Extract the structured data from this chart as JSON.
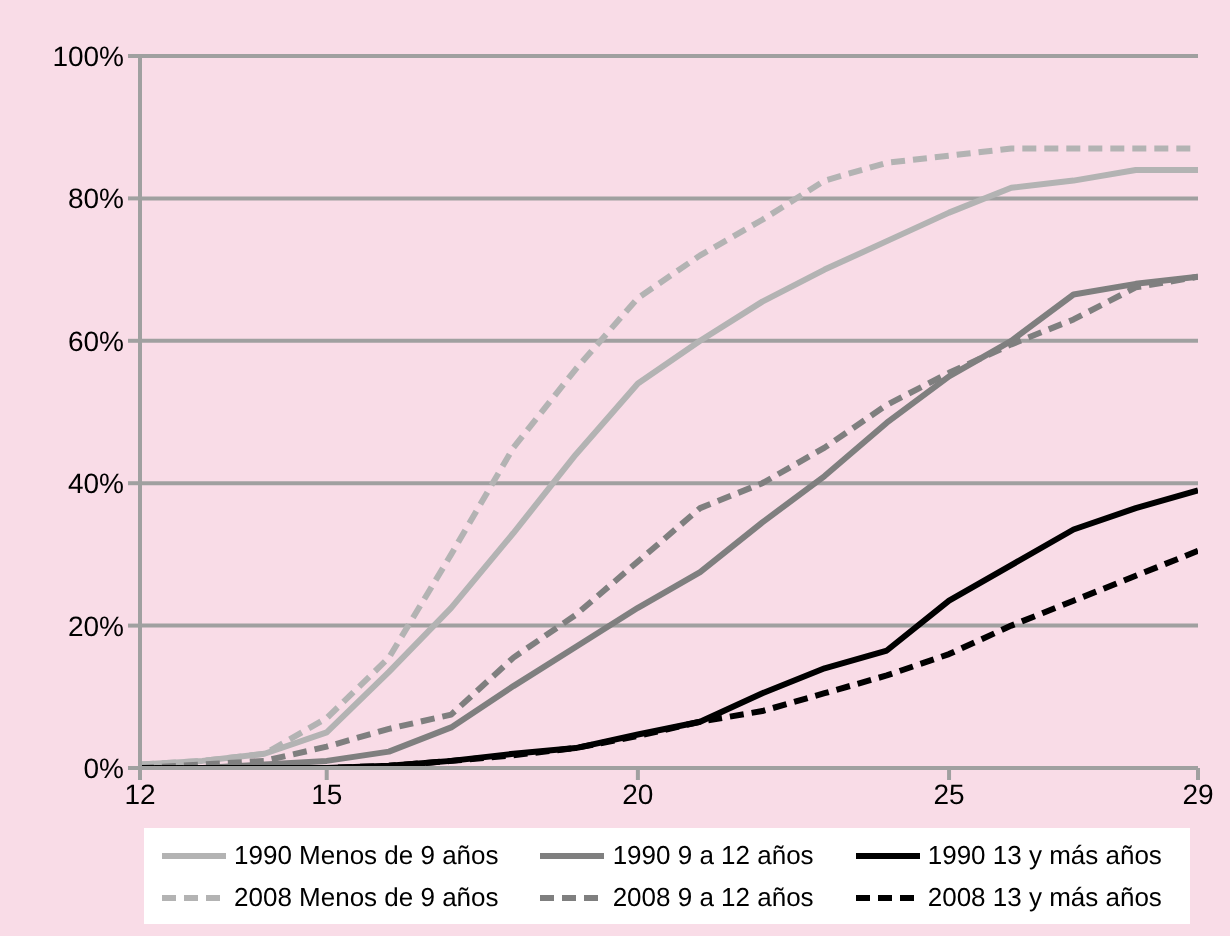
{
  "chart_data": {
    "type": "line",
    "x": [
      12,
      13,
      14,
      15,
      16,
      17,
      18,
      19,
      20,
      21,
      22,
      23,
      24,
      25,
      26,
      27,
      28,
      29
    ],
    "xlim": [
      12,
      29
    ],
    "xticks": [
      12,
      15,
      20,
      25,
      29
    ],
    "ylim": [
      0,
      100
    ],
    "yticks": [
      {
        "value": 0,
        "label": "0%"
      },
      {
        "value": 20,
        "label": "20%"
      },
      {
        "value": 40,
        "label": "40%"
      },
      {
        "value": 60,
        "label": "60%"
      },
      {
        "value": 80,
        "label": "80%"
      },
      {
        "value": 100,
        "label": "100%"
      }
    ],
    "grid": "y",
    "legend": "bottom",
    "marker": "none",
    "series": [
      {
        "name": "1990 Menos de 9 años",
        "color": "#b3b3b3",
        "line_style": "solid",
        "values": [
          0.5,
          1,
          2,
          5,
          13.5,
          22.5,
          33,
          44,
          54,
          60,
          65.5,
          70,
          74,
          78,
          81.5,
          82.5,
          84,
          84
        ]
      },
      {
        "name": "1990 9 a 12 años",
        "color": "#7f7f7f",
        "line_style": "solid",
        "values": [
          0,
          0,
          0.5,
          1,
          2.3,
          5.7,
          11.5,
          17,
          22.5,
          27.5,
          34.5,
          41,
          48.5,
          55,
          60,
          66.5,
          68,
          69
        ]
      },
      {
        "name": "1990 13 y más años",
        "color": "#000000",
        "line_style": "solid",
        "values": [
          0,
          0,
          0,
          0,
          0.3,
          1,
          2,
          2.8,
          4.7,
          6.5,
          10.5,
          14,
          16.5,
          23.5,
          28.5,
          33.5,
          36.5,
          39
        ]
      },
      {
        "name": "2008 Menos de 9 años",
        "color": "#b3b3b3",
        "line_style": "dashed",
        "values": [
          0.5,
          1,
          2,
          7,
          15.5,
          30,
          45,
          56,
          66,
          72,
          77,
          82.5,
          85,
          86,
          87,
          87,
          87,
          87
        ]
      },
      {
        "name": "2008 9 a 12 años",
        "color": "#7f7f7f",
        "line_style": "dashed",
        "values": [
          0,
          0.5,
          1,
          3,
          5.5,
          7.5,
          15.5,
          21.5,
          29,
          36.5,
          40,
          45,
          51,
          55.5,
          59.5,
          63,
          67.5,
          69
        ]
      },
      {
        "name": "2008 13 y más años",
        "color": "#000000",
        "line_style": "dashed",
        "values": [
          0,
          0,
          0,
          0,
          0.3,
          1,
          1.8,
          2.8,
          4.5,
          6.5,
          8,
          10.5,
          13,
          16,
          20,
          23.5,
          27,
          30.5
        ]
      }
    ]
  }
}
